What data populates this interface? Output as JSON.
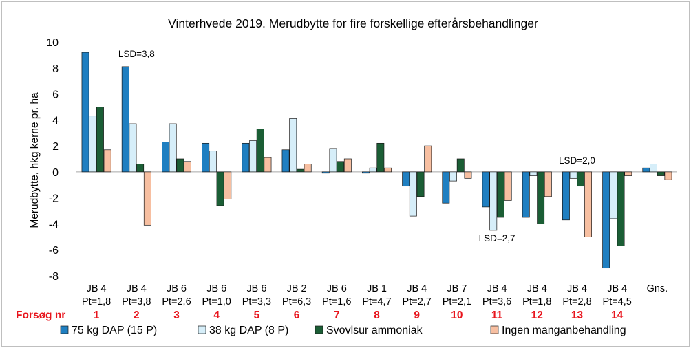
{
  "chart_data": {
    "type": "bar",
    "title": "Vinterhvede 2019. Merudbytte for fire forskellige efterårsbehandlinger",
    "ylabel": "Merudbytte, hkg kerne pr. ha",
    "xlabel": "",
    "ylim": [
      -8,
      10
    ],
    "yticks": [
      10,
      8,
      6,
      4,
      2,
      0,
      -2,
      -4,
      -6,
      -8
    ],
    "grid": false,
    "categories": [
      {
        "soil": "JB 4",
        "pt": "Pt=1,8",
        "nr": "1"
      },
      {
        "soil": "JB 4",
        "pt": "Pt=3,8",
        "nr": "2"
      },
      {
        "soil": "JB 6",
        "pt": "Pt=2,6",
        "nr": "3"
      },
      {
        "soil": "JB 6",
        "pt": "Pt=1,0",
        "nr": "4"
      },
      {
        "soil": "JB 6",
        "pt": "Pt=3,3",
        "nr": "5"
      },
      {
        "soil": "JB 2",
        "pt": "Pt=6,3",
        "nr": "6"
      },
      {
        "soil": "JB 6",
        "pt": "Pt=1,6",
        "nr": "7"
      },
      {
        "soil": "JB 1",
        "pt": "Pt=4,7",
        "nr": "8"
      },
      {
        "soil": "JB 4",
        "pt": "Pt=2,7",
        "nr": "9"
      },
      {
        "soil": "JB 7",
        "pt": "Pt=2,1",
        "nr": "10"
      },
      {
        "soil": "JB 4",
        "pt": "Pt=3,6",
        "nr": "11"
      },
      {
        "soil": "JB 4",
        "pt": "Pt=1,8",
        "nr": "12"
      },
      {
        "soil": "JB 4",
        "pt": "Pt=2,8",
        "nr": "13"
      },
      {
        "soil": "JB 4",
        "pt": "Pt=4,5",
        "nr": "14"
      },
      {
        "soil": "Gns.",
        "pt": "",
        "nr": ""
      }
    ],
    "series": [
      {
        "name": "75 kg DAP (15 P)",
        "color": "#1f7fc1",
        "values": [
          9.2,
          8.1,
          2.3,
          2.2,
          2.2,
          1.7,
          -0.1,
          -0.1,
          -1.1,
          -2.4,
          -2.7,
          -3.5,
          -3.7,
          -7.4,
          0.3
        ]
      },
      {
        "name": "38 kg DAP (8 P)",
        "color": "#d6eef9",
        "values": [
          4.3,
          3.7,
          3.7,
          1.6,
          2.4,
          4.1,
          1.8,
          0.3,
          -3.4,
          -0.7,
          -4.5,
          -0.3,
          -0.5,
          -3.6,
          0.6
        ]
      },
      {
        "name": "Svovlsur ammoniak",
        "color": "#1b5e35",
        "values": [
          5.0,
          0.6,
          1.0,
          -2.6,
          3.3,
          0.2,
          0.8,
          2.2,
          -1.9,
          1.0,
          -3.5,
          -4.0,
          -1.1,
          -5.7,
          -0.3
        ]
      },
      {
        "name": "Ingen manganbehandling",
        "color": "#f7bfa1",
        "values": [
          1.7,
          -4.1,
          0.8,
          -2.1,
          1.1,
          0.6,
          1.0,
          0.3,
          2.0,
          -0.5,
          -2.2,
          -1.9,
          -5.0,
          -0.3,
          -0.6
        ]
      }
    ],
    "annotations": [
      {
        "text": "LSD=3,8",
        "category": 1,
        "value": 9.1
      },
      {
        "text": "LSD=2,7",
        "category": 10,
        "value": -5.1
      },
      {
        "text": "LSD=2,0",
        "category": 12,
        "value": 0.9
      }
    ],
    "trial_label": "Forsøg nr",
    "trial_color": "#e8141c",
    "legend_position": "bottom"
  }
}
